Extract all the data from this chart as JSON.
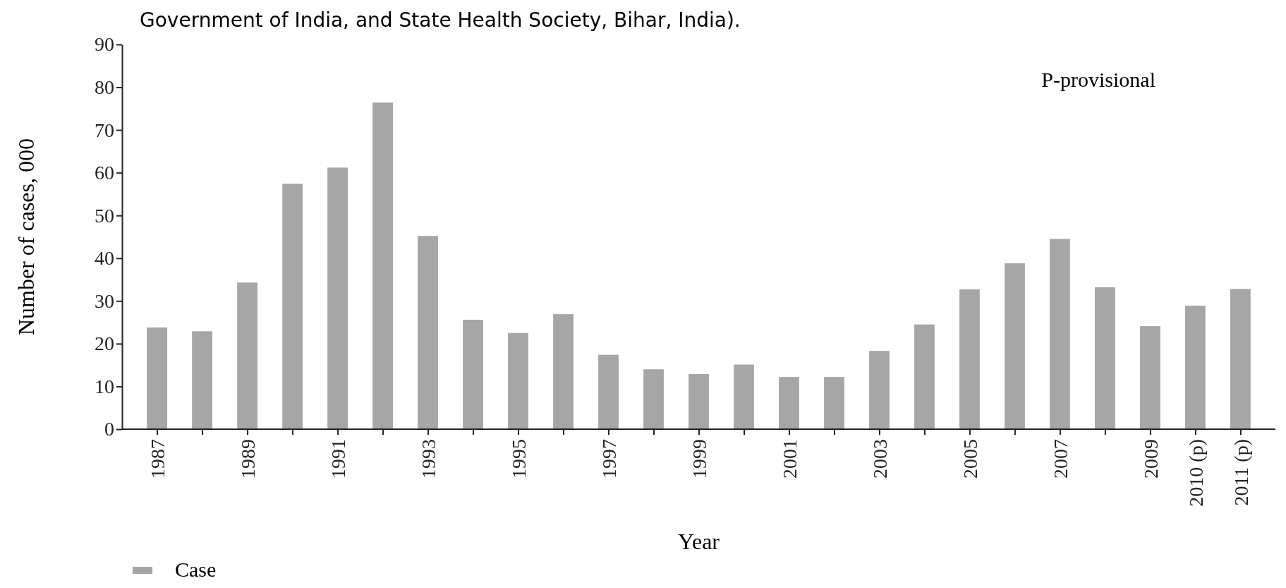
{
  "chart_data": {
    "type": "bar",
    "subtitle": "Government of India, and State Health Society, Bihar, India).",
    "xlabel": "Year",
    "ylabel": "Number of cases, 000",
    "categories": [
      "1987",
      null,
      "1989",
      null,
      "1991",
      null,
      "1993",
      null,
      "1995",
      null,
      "1997",
      null,
      "1999",
      null,
      "2001",
      null,
      "2003",
      null,
      "2005",
      null,
      "2007",
      null,
      "2009",
      "2010 (p)",
      "2011 (p)"
    ],
    "series": [
      {
        "name": "Case",
        "color": "#a6a6a6",
        "values": [
          23.8,
          22.9,
          34.3,
          57.4,
          61.2,
          76.4,
          45.2,
          25.6,
          22.5,
          26.9,
          17.4,
          14.0,
          12.9,
          15.1,
          12.2,
          12.2,
          18.3,
          24.5,
          32.7,
          38.8,
          44.5,
          33.2,
          24.1,
          28.9,
          32.8
        ]
      }
    ],
    "ylim": [
      0,
      90
    ],
    "yticks": [
      0,
      10,
      20,
      30,
      40,
      50,
      60,
      70,
      80,
      90
    ],
    "annotations": [
      "P-provisional"
    ],
    "legend": "bottom left"
  }
}
